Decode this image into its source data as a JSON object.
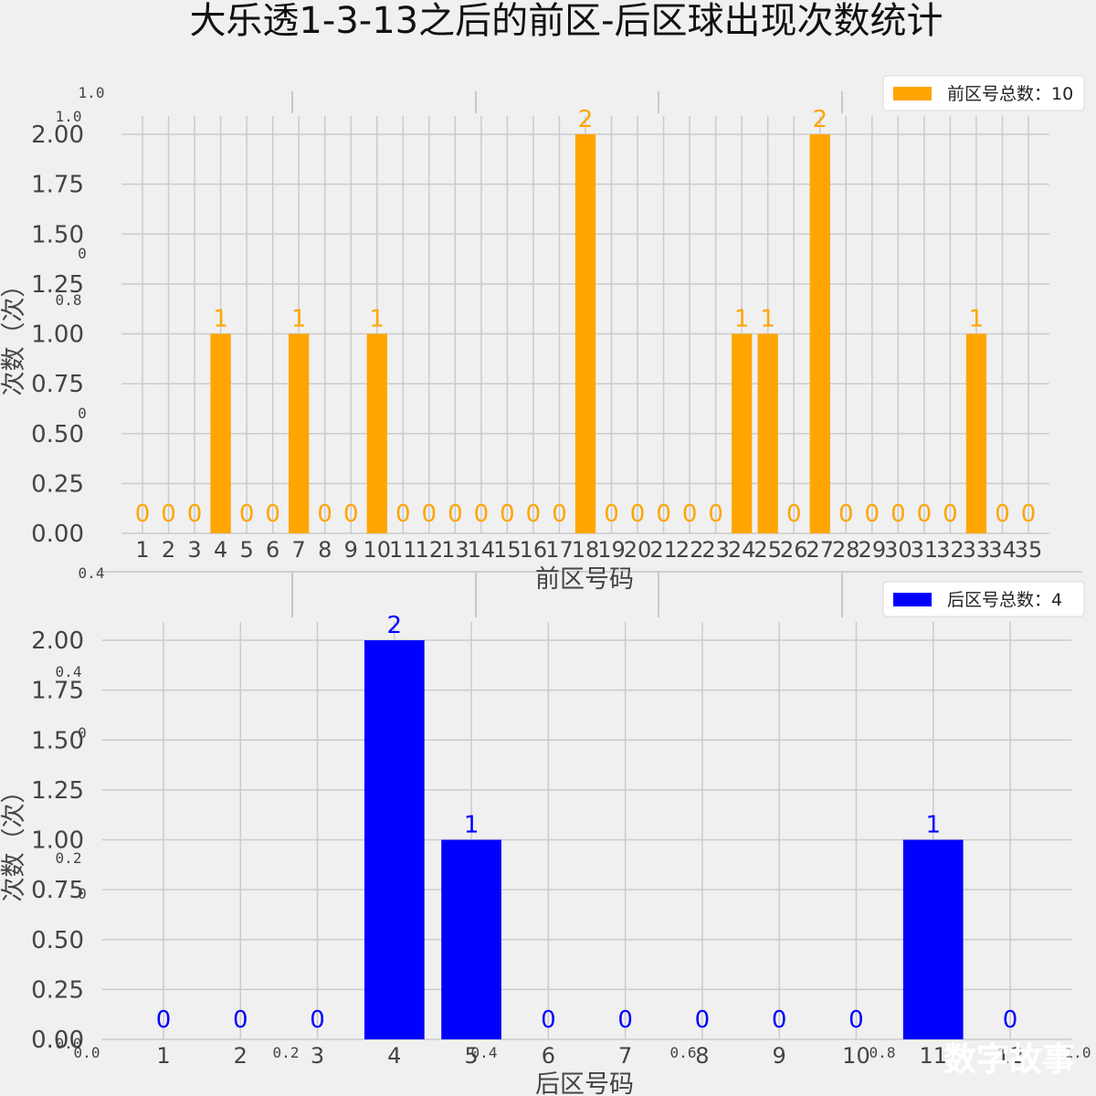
{
  "title": "大乐透1-3-13之后的前区-后区球出现次数统计",
  "watermark": "数字故事",
  "background_axis_ticks": {
    "top_left": [
      "1.0",
      "1.0",
      "0",
      "0.8",
      "0",
      "0.4"
    ],
    "bottom_left": [
      "0.4",
      "0",
      "0.2",
      "0",
      "0.0"
    ],
    "bottom_x": [
      "0.2",
      "0.4",
      "0.6",
      "0.8",
      "1.0"
    ],
    "bottom_x_zero": "0.0"
  },
  "chart_data": [
    {
      "type": "bar",
      "name": "front",
      "color": "#ffa500",
      "label_color": "#ffa500",
      "legend": "前区号总数：10",
      "xlabel": "前区号码",
      "ylabel": "次数（次）",
      "ylim": [
        0,
        2
      ],
      "yticks": [
        "0.00",
        "0.25",
        "0.50",
        "0.75",
        "1.00",
        "1.25",
        "1.50",
        "1.75",
        "2.00"
      ],
      "categories": [
        "1",
        "2",
        "3",
        "4",
        "5",
        "6",
        "7",
        "8",
        "9",
        "10",
        "11",
        "12",
        "13",
        "14",
        "15",
        "16",
        "17",
        "18",
        "19",
        "20",
        "21",
        "22",
        "23",
        "24",
        "25",
        "26",
        "27",
        "28",
        "29",
        "30",
        "31",
        "32",
        "33",
        "34",
        "35"
      ],
      "values": [
        0,
        0,
        0,
        1,
        0,
        0,
        1,
        0,
        0,
        1,
        0,
        0,
        0,
        0,
        0,
        0,
        0,
        2,
        0,
        0,
        0,
        0,
        0,
        1,
        1,
        0,
        2,
        0,
        0,
        0,
        0,
        0,
        1,
        0,
        0
      ]
    },
    {
      "type": "bar",
      "name": "back",
      "color": "#0000ff",
      "label_color": "#0000ff",
      "legend": "后区号总数：4",
      "xlabel": "后区号码",
      "ylabel": "次数（次）",
      "ylim": [
        0,
        2
      ],
      "yticks": [
        "0.00",
        "0.25",
        "0.50",
        "0.75",
        "1.00",
        "1.25",
        "1.50",
        "1.75",
        "2.00"
      ],
      "categories": [
        "1",
        "2",
        "3",
        "4",
        "5",
        "6",
        "7",
        "8",
        "9",
        "10",
        "11",
        "12"
      ],
      "values": [
        0,
        0,
        0,
        2,
        1,
        0,
        0,
        0,
        0,
        0,
        1,
        0
      ]
    }
  ]
}
